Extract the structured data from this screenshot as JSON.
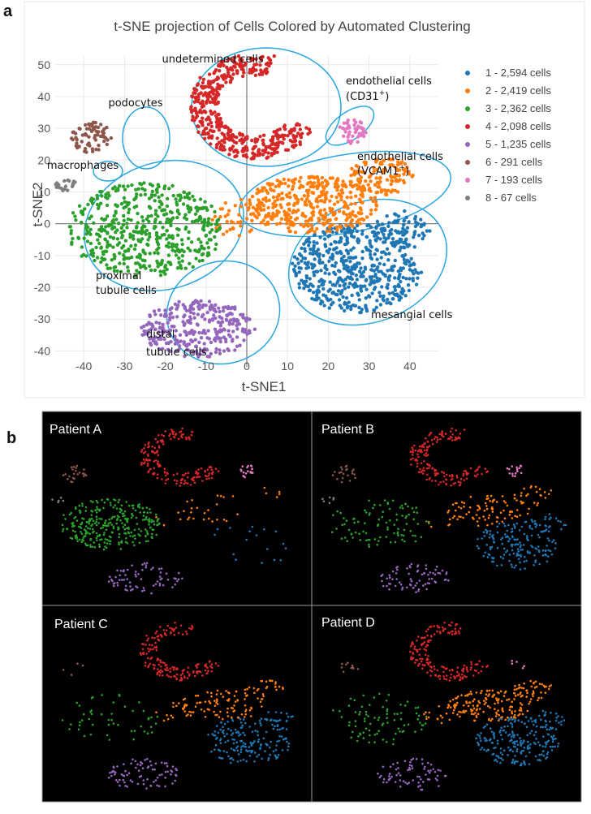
{
  "panel_a_label": "a",
  "panel_b_label": "b",
  "colors": {
    "1": "#1f77b4",
    "2": "#ff7f0e",
    "3": "#2ca02c",
    "4": "#d62728",
    "5": "#9467bd",
    "6": "#8c564b",
    "7": "#e377c2",
    "8": "#7f7f7f",
    "ellipse": "#2aa6e0"
  },
  "chart_data": [
    {
      "type": "scatter",
      "title": "t-SNE projection of Cells Colored by Automated Clustering",
      "xlabel": "t-SNE1",
      "ylabel": "t-SNE2",
      "xlim": [
        -47,
        47
      ],
      "ylim": [
        -45,
        53
      ],
      "xticks": [
        -40,
        -30,
        -20,
        -10,
        0,
        10,
        20,
        30,
        40
      ],
      "yticks": [
        50,
        40,
        30,
        20,
        10,
        0,
        -10,
        -20,
        -30,
        -40
      ],
      "grid": true,
      "legend_position": "right",
      "series": [
        {
          "id": "1",
          "name": "1 - 2,594 cells",
          "count": 2594
        },
        {
          "id": "2",
          "name": "2 - 2,419 cells",
          "count": 2419
        },
        {
          "id": "3",
          "name": "3 - 2,362 cells",
          "count": 2362
        },
        {
          "id": "4",
          "name": "4 - 2,098 cells",
          "count": 2098
        },
        {
          "id": "5",
          "name": "5 - 1,235 cells",
          "count": 1235
        },
        {
          "id": "6",
          "name": "6 - 291 cells",
          "count": 291
        },
        {
          "id": "7",
          "name": "7 - 193 cells",
          "count": 193
        },
        {
          "id": "8",
          "name": "8 - 67 cells",
          "count": 67
        }
      ],
      "annotations": {
        "undetermined": "undetermined  cells",
        "podocytes": "podocytes",
        "macrophages": "macrophages",
        "endo_cd31_line1": "endothelial cells",
        "endo_cd31_line2": "(CD31",
        "endo_cd31_sup": "+",
        "endo_cd31_close": ")",
        "endo_vcam_line1": "endothelial cells",
        "endo_vcam_line2": "(VCAM1",
        "endo_vcam_sup": "+",
        "endo_vcam_close": ")",
        "proximal_line1": "proximal",
        "proximal_line2": "tubule cells",
        "distal_line1": "distal",
        "distal_line2": "tubule cells",
        "mesangial": "mesangial cells"
      }
    },
    {
      "type": "scatter",
      "panel": "b",
      "patients": [
        "Patient A",
        "Patient B",
        "Patient C",
        "Patient D"
      ]
    }
  ]
}
